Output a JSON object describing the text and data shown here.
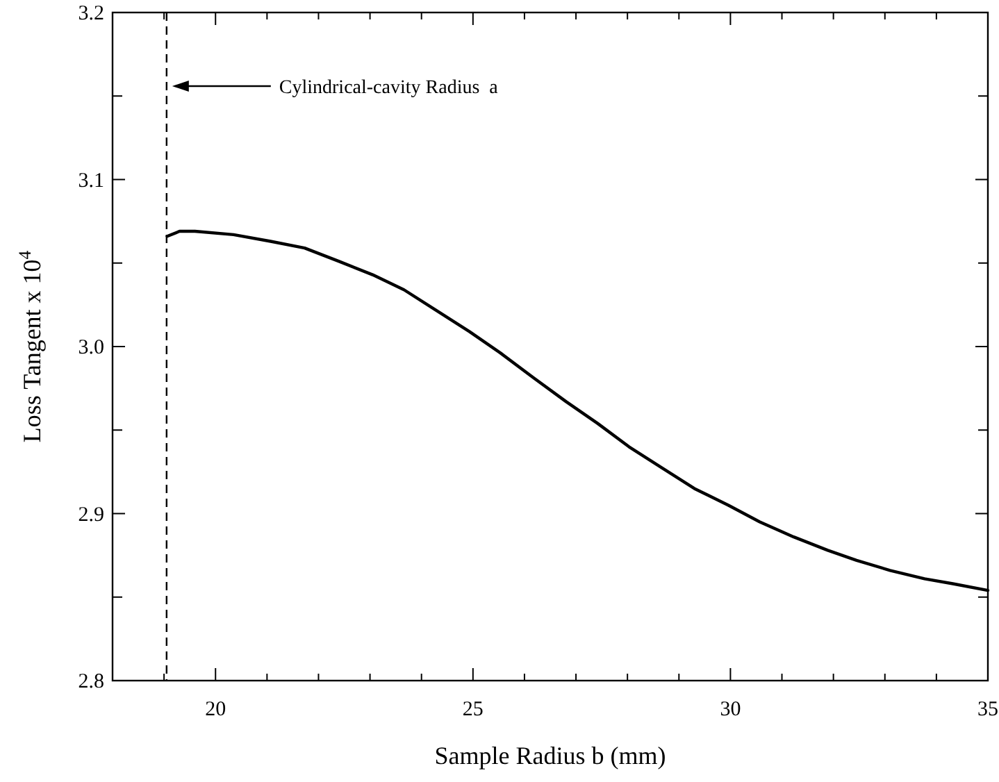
{
  "chart_data": {
    "type": "line",
    "xlabel": "Sample Radius b (mm)",
    "ylabel": "Loss Tangent x 10$^{4}$",
    "xlim": [
      18,
      35
    ],
    "ylim": [
      2.8,
      3.2
    ],
    "xticks": [
      {
        "value": 18,
        "label": null
      },
      {
        "value": 19,
        "label": null
      },
      20,
      {
        "value": 21,
        "label": null
      },
      {
        "value": 22,
        "label": null
      },
      {
        "value": 23,
        "label": null
      },
      {
        "value": 24,
        "label": null
      },
      25,
      {
        "value": 26,
        "label": null
      },
      {
        "value": 27,
        "label": null
      },
      {
        "value": 28,
        "label": null
      },
      {
        "value": 29,
        "label": null
      },
      30,
      {
        "value": 31,
        "label": null
      },
      {
        "value": 32,
        "label": null
      },
      {
        "value": 33,
        "label": null
      },
      {
        "value": 34,
        "label": null
      },
      35
    ],
    "yticks": [
      {
        "value": 2.8,
        "label": "2.8"
      },
      {
        "value": 2.85,
        "label": null
      },
      {
        "value": 2.9,
        "label": "2.9"
      },
      {
        "value": 2.95,
        "label": null
      },
      {
        "value": 3.0,
        "label": "3.0"
      },
      {
        "value": 3.05,
        "label": null
      },
      {
        "value": 3.1,
        "label": "3.1"
      },
      {
        "value": 3.15,
        "label": null
      },
      {
        "value": 3.2,
        "label": "3.2"
      }
    ],
    "grid": false,
    "line_style": "solid",
    "ref_lines": [
      {
        "axis": "x",
        "value": 19.05,
        "label": "Cylindrical-cavity Radius  a",
        "line_style": "dashed",
        "color": "#000000"
      }
    ],
    "series": [
      {
        "color": "#000000",
        "x": [
          19.06,
          19.3,
          19.6,
          20.35,
          21.07,
          21.73,
          22.4,
          23.05,
          23.66,
          24.27,
          24.93,
          25.54,
          26.19,
          26.81,
          27.42,
          28.03,
          28.69,
          29.3,
          29.96,
          30.57,
          31.23,
          31.89,
          32.45,
          33.1,
          33.77,
          34.32,
          35
        ],
        "values": [
          3.066,
          3.069,
          3.069,
          3.067,
          3.063,
          3.059,
          3.051,
          3.043,
          3.034,
          3.022,
          3.009,
          2.996,
          2.981,
          2.967,
          2.954,
          2.94,
          2.927,
          2.915,
          2.905,
          2.895,
          2.886,
          2.878,
          2.872,
          2.866,
          2.861,
          2.858,
          2.854
        ]
      }
    ]
  }
}
